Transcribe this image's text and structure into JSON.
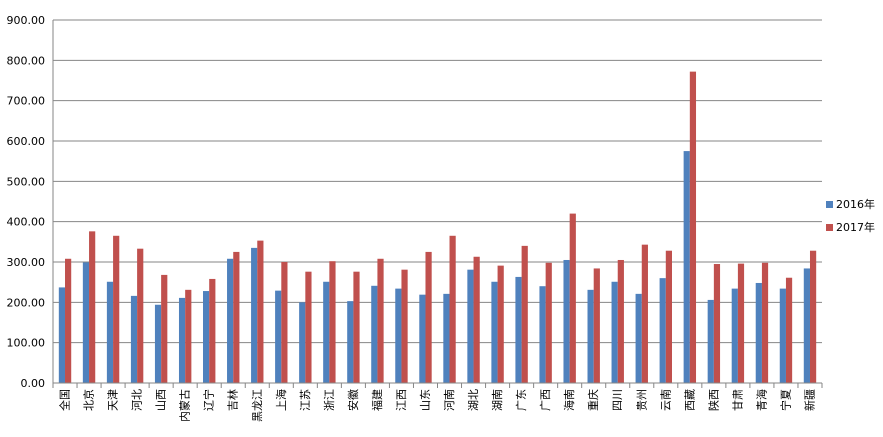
{
  "chart_data": {
    "type": "bar",
    "title": "",
    "xlabel": "",
    "ylabel": "",
    "ylim": [
      0,
      900
    ],
    "yticks": [
      "0.00",
      "100.00",
      "200.00",
      "300.00",
      "400.00",
      "500.00",
      "600.00",
      "700.00",
      "800.00",
      "900.00"
    ],
    "grid": true,
    "legend_position": "right",
    "categories": [
      "全国",
      "北京",
      "天津",
      "河北",
      "山西",
      "内蒙古",
      "辽宁",
      "吉林",
      "黑龙江",
      "上海",
      "江苏",
      "浙江",
      "安徽",
      "福建",
      "江西",
      "山东",
      "河南",
      "湖北",
      "湖南",
      "广东",
      "广西",
      "海南",
      "重庆",
      "四川",
      "贵州",
      "云南",
      "西藏",
      "陕西",
      "甘肃",
      "青海",
      "宁夏",
      "新疆"
    ],
    "series": [
      {
        "name": "2016年",
        "color": "#4F81BD",
        "values": [
          237,
          299,
          251,
          216,
          194,
          211,
          228,
          308,
          335,
          229,
          200,
          251,
          203,
          241,
          234,
          219,
          221,
          281,
          251,
          263,
          240,
          305,
          231,
          251,
          221,
          260,
          575,
          206,
          234,
          248,
          234,
          284
        ]
      },
      {
        "name": "2017年",
        "color": "#C0504D",
        "values": [
          308,
          376,
          365,
          333,
          268,
          231,
          258,
          325,
          353,
          300,
          276,
          302,
          276,
          308,
          281,
          325,
          365,
          313,
          291,
          340,
          298,
          420,
          284,
          305,
          343,
          328,
          772,
          295,
          296,
          298,
          261,
          328
        ]
      }
    ]
  }
}
